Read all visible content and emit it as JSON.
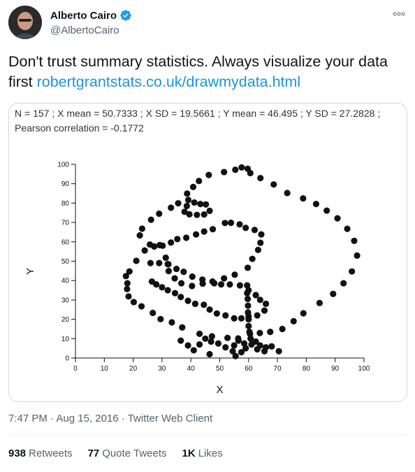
{
  "author": {
    "name": "Alberto Cairo",
    "handle": "@AlbertoCairo",
    "verified": true
  },
  "more_icon": "more-icon",
  "tweet": {
    "text": "Don't trust summary statistics. Always visualize your data first ",
    "link": "robertgrantstats.co.uk/drawmydata.html"
  },
  "card": {
    "stats_line1": "N = 157 ; X mean = 50.7333 ; X SD = 19.5661 ; Y mean = 46.495 ; Y SD = 27.2828 ;",
    "stats_line2": "Pearson correlation = -0.1772"
  },
  "chart_data": {
    "type": "scatter",
    "xlabel": "X",
    "ylabel": "Y",
    "xlim": [
      0,
      100
    ],
    "ylim": [
      0,
      100
    ],
    "xticks": [
      "0",
      "10",
      "20",
      "30",
      "40",
      "50",
      "60",
      "70",
      "80",
      "90",
      "100"
    ],
    "yticks": [
      "0",
      "10",
      "20",
      "30",
      "40",
      "50",
      "60",
      "70",
      "80",
      "90",
      "100"
    ],
    "grid": false,
    "marker_color": "#111111",
    "points": [
      [
        55.4,
        97.2
      ],
      [
        51.5,
        96.0
      ],
      [
        46.2,
        94.5
      ],
      [
        42.8,
        91.4
      ],
      [
        40.8,
        88.3
      ],
      [
        38.7,
        84.9
      ],
      [
        35.6,
        79.9
      ],
      [
        33.1,
        77.6
      ],
      [
        29.0,
        74.5
      ],
      [
        26.2,
        71.4
      ],
      [
        23.1,
        66.8
      ],
      [
        22.3,
        63.3
      ],
      [
        25.8,
        58.6
      ],
      [
        29.2,
        58.3
      ],
      [
        31.3,
        51.8
      ],
      [
        32.2,
        48.4
      ],
      [
        32.3,
        44.9
      ],
      [
        34.4,
        41.1
      ],
      [
        36.7,
        38.6
      ],
      [
        40.4,
        37.2
      ],
      [
        44.1,
        38.4
      ],
      [
        48.1,
        38.6
      ],
      [
        51.5,
        41.1
      ],
      [
        55.2,
        43.0
      ],
      [
        59.7,
        46.6
      ],
      [
        61.3,
        51.2
      ],
      [
        63.3,
        55.8
      ],
      [
        64.1,
        59.5
      ],
      [
        64.4,
        63.8
      ],
      [
        62.1,
        66.1
      ],
      [
        59.0,
        67.2
      ],
      [
        56.9,
        69.0
      ],
      [
        53.9,
        69.8
      ],
      [
        51.8,
        69.7
      ],
      [
        47.6,
        66.5
      ],
      [
        44.6,
        65.3
      ],
      [
        41.8,
        63.8
      ],
      [
        38.4,
        62.1
      ],
      [
        35.3,
        61.4
      ],
      [
        33.1,
        59.6
      ],
      [
        30.2,
        58.0
      ],
      [
        27.3,
        57.6
      ],
      [
        24.0,
        55.5
      ],
      [
        21.1,
        50.2
      ],
      [
        18.7,
        44.7
      ],
      [
        17.5,
        42.3
      ],
      [
        18.0,
        38.6
      ],
      [
        17.9,
        35.6
      ],
      [
        18.4,
        31.8
      ],
      [
        20.2,
        28.9
      ],
      [
        22.9,
        26.7
      ],
      [
        26.8,
        23.3
      ],
      [
        29.5,
        20.1
      ],
      [
        33.4,
        18.4
      ],
      [
        37.0,
        15.8
      ],
      [
        43.0,
        12.5
      ],
      [
        47.3,
        11.2
      ],
      [
        52.7,
        10.4
      ],
      [
        56.4,
        10.1
      ],
      [
        60.5,
        12.4
      ],
      [
        63.9,
        12.9
      ],
      [
        67.5,
        13.5
      ],
      [
        71.7,
        15.0
      ],
      [
        75.6,
        19.0
      ],
      [
        79.0,
        23.1
      ],
      [
        84.6,
        28.4
      ],
      [
        89.3,
        33.1
      ],
      [
        92.9,
        38.6
      ],
      [
        95.8,
        44.7
      ],
      [
        97.6,
        52.9
      ],
      [
        96.6,
        60.5
      ],
      [
        94.2,
        66.7
      ],
      [
        90.8,
        72.1
      ],
      [
        87.1,
        76.1
      ],
      [
        83.4,
        79.5
      ],
      [
        78.9,
        82.4
      ],
      [
        73.4,
        85.2
      ],
      [
        68.7,
        89.6
      ],
      [
        64.1,
        92.9
      ],
      [
        60.6,
        95.5
      ],
      [
        59.7,
        97.7
      ],
      [
        57.6,
        98.4
      ],
      [
        39.1,
        81.6
      ],
      [
        41.2,
        80.3
      ],
      [
        43.3,
        79.5
      ],
      [
        45.2,
        79.3
      ],
      [
        46.5,
        76.0
      ],
      [
        44.6,
        74.1
      ],
      [
        42.1,
        73.9
      ],
      [
        39.5,
        74.2
      ],
      [
        37.8,
        75.5
      ],
      [
        38.6,
        78.5
      ],
      [
        26.0,
        49.0
      ],
      [
        29.0,
        49.0
      ],
      [
        32.0,
        48.5
      ],
      [
        35.0,
        46.0
      ],
      [
        37.5,
        44.5
      ],
      [
        40.5,
        42.0
      ],
      [
        44.0,
        40.5
      ],
      [
        47.5,
        39.5
      ],
      [
        50.5,
        38.0
      ],
      [
        53.5,
        38.0
      ],
      [
        57.0,
        37.5
      ],
      [
        60.0,
        35.0
      ],
      [
        62.5,
        32.5
      ],
      [
        64.0,
        30.0
      ],
      [
        66.0,
        28.0
      ],
      [
        65.5,
        24.5
      ],
      [
        63.0,
        22.0
      ],
      [
        60.0,
        21.5
      ],
      [
        57.5,
        20.5
      ],
      [
        55.0,
        20.5
      ],
      [
        52.0,
        22.0
      ],
      [
        49.0,
        23.0
      ],
      [
        46.5,
        25.0
      ],
      [
        44.5,
        27.5
      ],
      [
        41.5,
        28.0
      ],
      [
        39.0,
        29.5
      ],
      [
        36.5,
        31.5
      ],
      [
        34.5,
        33.5
      ],
      [
        32.0,
        35.0
      ],
      [
        30.0,
        36.5
      ],
      [
        28.0,
        38.0
      ],
      [
        26.5,
        39.5
      ],
      [
        56.5,
        9.0
      ],
      [
        55.0,
        6.5
      ],
      [
        54.5,
        3.5
      ],
      [
        55.5,
        1.0
      ],
      [
        58.5,
        7.5
      ],
      [
        61.0,
        7.0
      ],
      [
        63.0,
        4.5
      ],
      [
        65.5,
        3.5
      ],
      [
        68.0,
        6.0
      ],
      [
        70.5,
        3.5
      ],
      [
        52.0,
        5.5
      ],
      [
        49.5,
        7.5
      ],
      [
        47.0,
        8.5
      ],
      [
        45.0,
        10.0
      ],
      [
        43.0,
        7.0
      ],
      [
        41.0,
        4.0
      ],
      [
        39.0,
        6.5
      ],
      [
        36.5,
        9.0
      ],
      [
        59.5,
        37.5
      ],
      [
        59.5,
        33.5
      ],
      [
        59.7,
        30.5
      ],
      [
        59.8,
        27.0
      ],
      [
        59.8,
        23.5
      ],
      [
        60.0,
        20.0
      ],
      [
        60.0,
        16.5
      ],
      [
        60.3,
        13.5
      ],
      [
        60.7,
        10.0
      ],
      [
        59.0,
        5.0
      ],
      [
        57.5,
        3.0
      ],
      [
        62.5,
        8.5
      ],
      [
        64.0,
        6.5
      ],
      [
        66.0,
        5.5
      ],
      [
        46.5,
        2.0
      ]
    ]
  },
  "meta": {
    "time": "7:47 PM",
    "sep": " · ",
    "date": "Aug 15, 2016",
    "client": "Twitter Web Client"
  },
  "counts": {
    "retweets_num": "938",
    "retweets_label": "Retweets",
    "quotes_num": "77",
    "quotes_label": "Quote Tweets",
    "likes_num": "1K",
    "likes_label": "Likes"
  }
}
